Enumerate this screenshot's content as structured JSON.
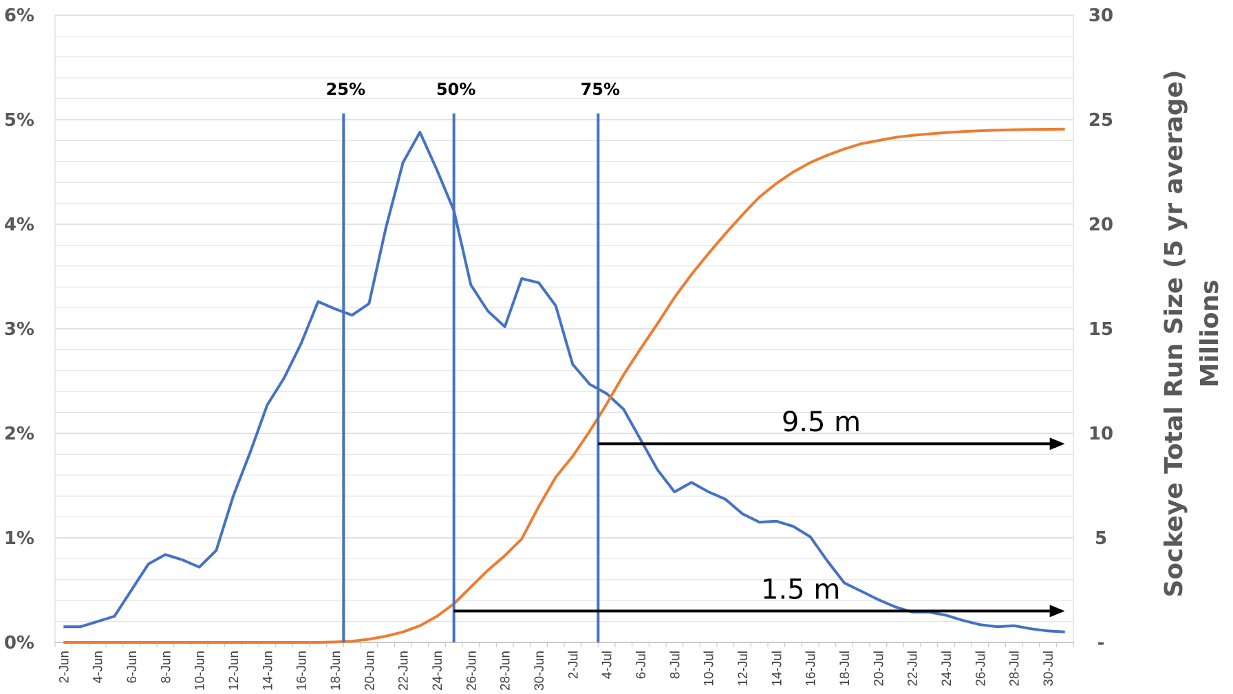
{
  "chart_data": {
    "type": "line",
    "title": "",
    "xlabel": "",
    "ylabel": "",
    "y2label_line1": "Sockeye Total Run Size (5 yr average)",
    "y2label_line2": "Millions",
    "ylim": [
      0,
      6
    ],
    "y2lim": [
      0,
      30
    ],
    "legend": "none",
    "grid": true,
    "y_ticks": [
      "0%",
      "1%",
      "2%",
      "3%",
      "4%",
      "5%",
      "6%"
    ],
    "y2_ticks": [
      "-",
      "5",
      "10",
      "15",
      "20",
      "25",
      "30"
    ],
    "x_tick_labels": [
      "2-Jun",
      "4-Jun",
      "6-Jun",
      "8-Jun",
      "10-Jun",
      "12-Jun",
      "14-Jun",
      "16-Jun",
      "18-Jun",
      "20-Jun",
      "22-Jun",
      "24-Jun",
      "26-Jun",
      "28-Jun",
      "30-Jun",
      "2-Jul",
      "4-Jul",
      "6-Jul",
      "8-Jul",
      "10-Jul",
      "12-Jul",
      "14-Jul",
      "16-Jul",
      "18-Jul",
      "20-Jul",
      "22-Jul",
      "24-Jul",
      "26-Jul",
      "28-Jul",
      "30-Jul"
    ],
    "series": [
      {
        "name": "",
        "axis": "left",
        "unit": "percent",
        "color": "#4472C4",
        "x_start": "2-Jun",
        "values": [
          0.15,
          0.15,
          0.2,
          0.25,
          0.5,
          0.75,
          0.84,
          0.79,
          0.72,
          0.88,
          1.4,
          1.82,
          2.27,
          2.53,
          2.86,
          3.26,
          3.19,
          3.13,
          3.24,
          3.97,
          4.59,
          4.88,
          4.52,
          4.13,
          3.42,
          3.17,
          3.02,
          3.48,
          3.44,
          3.22,
          2.66,
          2.47,
          2.38,
          2.23,
          1.94,
          1.65,
          1.44,
          1.53,
          1.44,
          1.37,
          1.23,
          1.15,
          1.16,
          1.11,
          1.01,
          0.78,
          0.57,
          0.49,
          0.41,
          0.34,
          0.29,
          0.29,
          0.26,
          0.21,
          0.17,
          0.15,
          0.16,
          0.13,
          0.11,
          0.1
        ]
      },
      {
        "name": "",
        "axis": "right",
        "unit": "millions",
        "color": "#ED7D31",
        "x_start": "2-Jun",
        "values": [
          0,
          0,
          0,
          0,
          0,
          0,
          0,
          0,
          0,
          0,
          0,
          0,
          0,
          0,
          0,
          0,
          0.02,
          0.06,
          0.15,
          0.3,
          0.5,
          0.8,
          1.25,
          1.85,
          2.65,
          3.45,
          4.15,
          4.95,
          6.5,
          7.9,
          8.9,
          10.1,
          11.4,
          12.8,
          14.05,
          15.25,
          16.5,
          17.6,
          18.6,
          19.55,
          20.45,
          21.3,
          21.95,
          22.5,
          22.95,
          23.3,
          23.6,
          23.85,
          24.0,
          24.15,
          24.25,
          24.32,
          24.38,
          24.43,
          24.47,
          24.5,
          24.52,
          24.53,
          24.54,
          24.55
        ]
      }
    ],
    "vertical_markers": [
      {
        "label": "25%",
        "x": "18.5-Jun"
      },
      {
        "label": "50%",
        "x": "25-Jun"
      },
      {
        "label": "75%",
        "x": "3.5-Jul"
      }
    ],
    "annotations": [
      {
        "text": "9.5 m",
        "from_x": "3.5-Jul",
        "to_x": "31-Jul",
        "y_right": 9.5
      },
      {
        "text": "1.5 m",
        "from_x": "25-Jun",
        "to_x": "31-Jul",
        "y_right": 1.5
      }
    ],
    "colors": {
      "blue": "#4472C4",
      "orange": "#ED7D31",
      "grid": "#D9D9D9",
      "axis_text": "#595959"
    }
  }
}
